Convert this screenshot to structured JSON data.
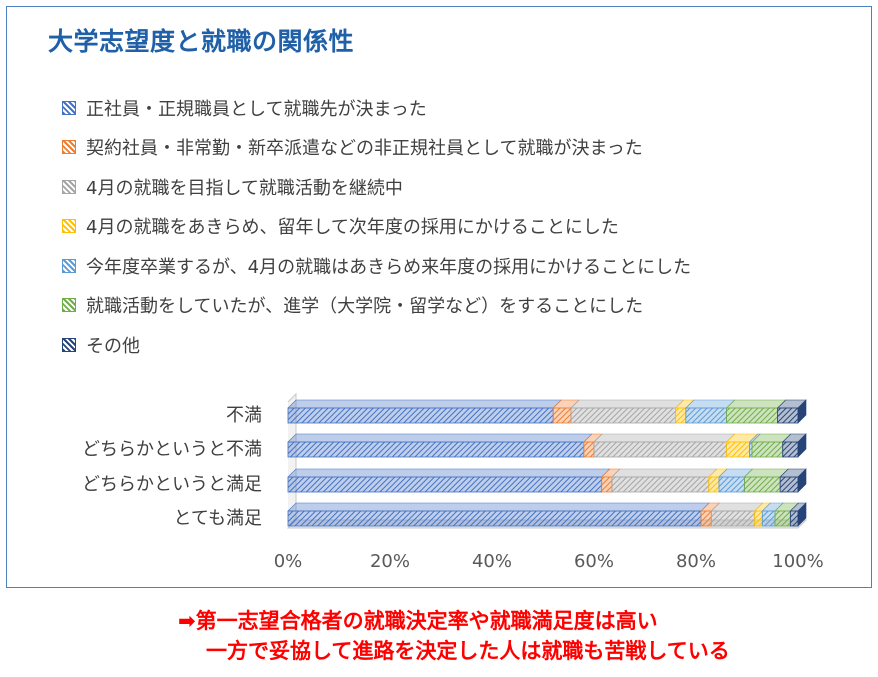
{
  "title": "大学志望度と就職の関係性",
  "caption": {
    "arrow": "➡",
    "line1": "第一志望合格者の就職決定率や就職満足度は高い",
    "line2": "一方で妥協して進路を決定した人は就職も苦戦している"
  },
  "chart_data": {
    "type": "bar",
    "orientation": "horizontal",
    "stacked": "percent",
    "title": "大学志望度と就職の関係性",
    "categories": [
      "不満",
      "どちらかというと不満",
      "どちらかというと満足",
      "とても満足"
    ],
    "xlim": [
      0,
      100
    ],
    "xticks": [
      "0%",
      "20%",
      "40%",
      "60%",
      "80%",
      "100%"
    ],
    "legend_position": "top",
    "series": [
      {
        "name": "正社員・正規職員として就職先が決まった",
        "color": "#4472c4",
        "values": [
          52,
          58,
          61.5,
          81
        ]
      },
      {
        "name": "契約社員・非常勤・新卒派遣などの非正規社員として就職が決まった",
        "color": "#ed7d31",
        "values": [
          3.5,
          2,
          2,
          2
        ]
      },
      {
        "name": "4月の就職を目指して就職活動を継続中",
        "color": "#a5a5a5",
        "values": [
          20.5,
          26,
          19,
          8.5
        ]
      },
      {
        "name": "4月の就職をあきらめ、留年して次年度の採用にかけることにした",
        "color": "#ffc000",
        "values": [
          2,
          4.5,
          2,
          1.5
        ]
      },
      {
        "name": "今年度卒業するが、4月の就職はあきらめ来年度の採用にかけることにした",
        "color": "#5b9bd5",
        "values": [
          8,
          0.5,
          5,
          2.5
        ]
      },
      {
        "name": "就職活動をしていたが、進学（大学院・留学など）をすることにした",
        "color": "#70ad47",
        "values": [
          10,
          6,
          7,
          3
        ]
      },
      {
        "name": "その他",
        "color": "#264478",
        "values": [
          4,
          3,
          3.5,
          1.5
        ]
      }
    ]
  }
}
